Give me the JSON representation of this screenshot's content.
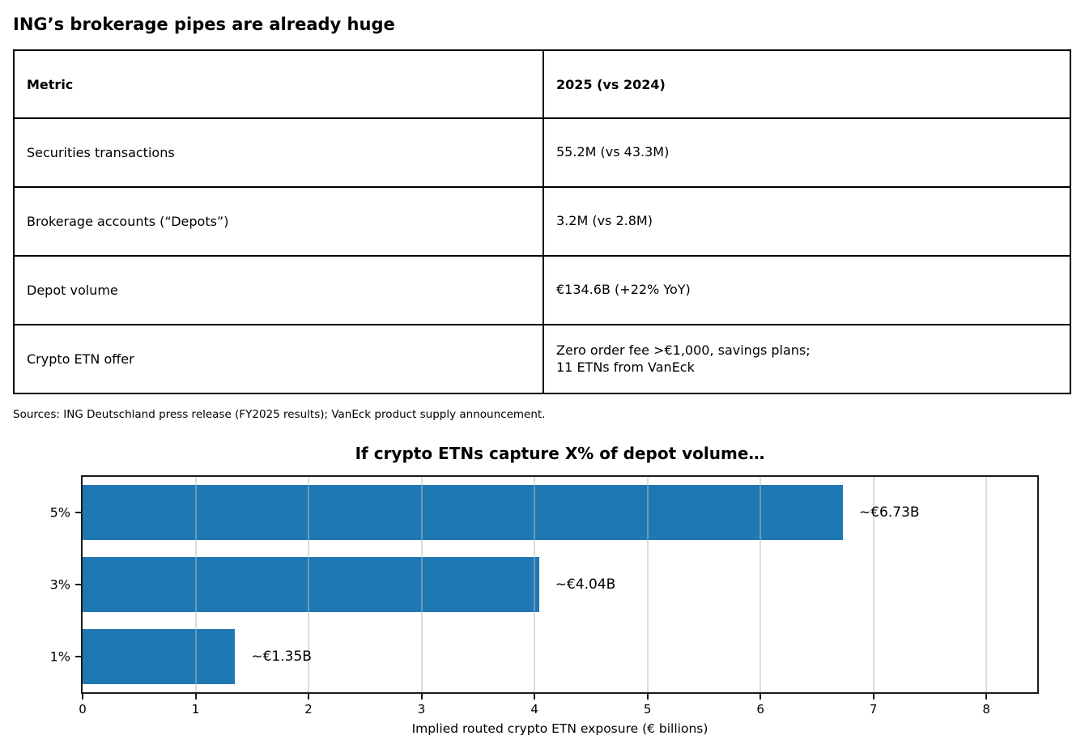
{
  "page_title": "ING’s brokerage pipes are already huge",
  "table": {
    "headers": [
      "Metric",
      "2025 (vs 2024)"
    ],
    "rows": [
      {
        "metric": "Securities transactions",
        "value": "55.2M (vs 43.3M)"
      },
      {
        "metric": "Brokerage accounts (“Depots”)",
        "value": "3.2M (vs 2.8M)"
      },
      {
        "metric": "Depot volume",
        "value": "€134.6B (+22% YoY)"
      },
      {
        "metric": "Crypto ETN offer",
        "value": "Zero order fee >€1,000, savings plans;\n11 ETNs from VanEck"
      }
    ]
  },
  "sources": "Sources: ING Deutschland press release (FY2025 results); VanEck product supply announcement.",
  "chart_data": {
    "type": "bar",
    "orientation": "horizontal",
    "title": "If crypto ETNs capture X% of depot volume…",
    "categories": [
      "5%",
      "3%",
      "1%"
    ],
    "values": [
      6.73,
      4.04,
      1.35
    ],
    "bar_labels": [
      "~€6.73B",
      "~€4.04B",
      "~€1.35B"
    ],
    "xlabel": "Implied routed crypto ETN exposure (€ billions)",
    "xticks": [
      0,
      1,
      2,
      3,
      4,
      5,
      6,
      7,
      8
    ],
    "xlim": [
      0,
      8.45
    ],
    "grid": true,
    "grid_color": "rgba(185,185,185,0.5)",
    "bar_color": "#1f77b4",
    "text_color": "#000000",
    "legend": null
  }
}
